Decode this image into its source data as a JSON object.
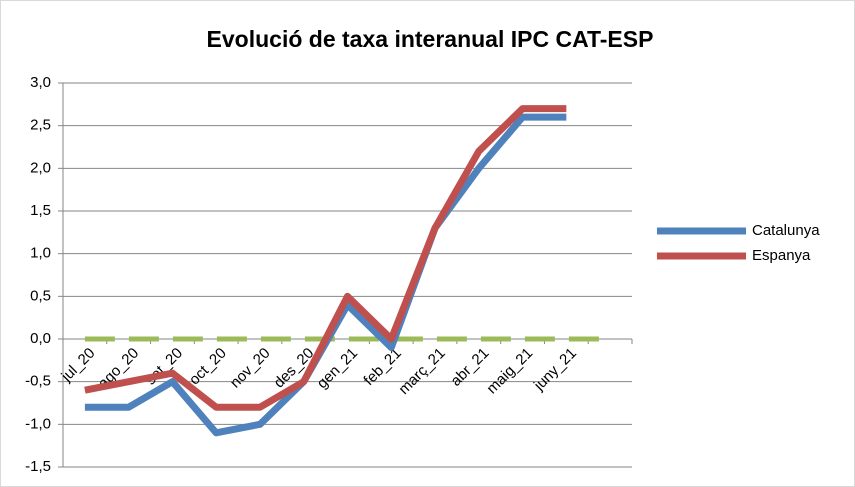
{
  "chart_data": {
    "type": "line",
    "title": "Evolució de taxa interanual IPC CAT-ESP",
    "categories": [
      "jul_20",
      "ago_20",
      "set_20",
      "oct_20",
      "nov_20",
      "des_20",
      "gen_21",
      "feb_21",
      "març_21",
      "abr_21",
      "maig_21",
      "juny_21",
      null
    ],
    "series": [
      {
        "name": "Catalunya",
        "color": "#4f81bd",
        "values": [
          -0.8,
          -0.8,
          -0.5,
          -1.1,
          -1.0,
          -0.5,
          0.4,
          -0.1,
          1.3,
          2.0,
          2.6,
          2.6,
          null
        ]
      },
      {
        "name": "Espanya",
        "color": "#c0504d",
        "values": [
          -0.6,
          -0.5,
          -0.4,
          -0.8,
          -0.8,
          -0.5,
          0.5,
          0.0,
          1.3,
          2.2,
          2.7,
          2.7,
          null
        ]
      }
    ],
    "reference_series": {
      "color": "#9bbb59",
      "values": [
        0,
        0,
        0,
        0,
        0,
        0,
        0,
        0,
        0,
        0,
        0,
        0,
        0
      ]
    },
    "ylim": [
      -1.5,
      3.0
    ],
    "yticks": [
      {
        "value": -1.5,
        "label": "-1,5"
      },
      {
        "value": -1.0,
        "label": "-1,0"
      },
      {
        "value": -0.5,
        "label": "-0,5"
      },
      {
        "value": 0,
        "label": "0,0"
      },
      {
        "value": 0.5,
        "label": "0,5"
      },
      {
        "value": 1.0,
        "label": "1,0"
      },
      {
        "value": 1.5,
        "label": "1,5"
      },
      {
        "value": 2.0,
        "label": "2,0"
      },
      {
        "value": 2.5,
        "label": "2,5"
      },
      {
        "value": 3.0,
        "label": "3,0"
      }
    ],
    "grid": true,
    "legend": "right"
  }
}
